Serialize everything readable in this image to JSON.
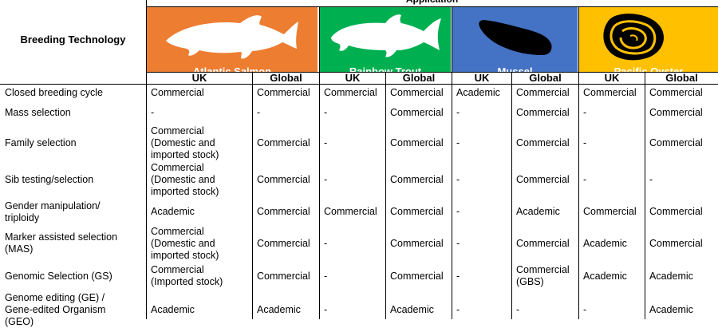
{
  "header": {
    "application_label": "Application",
    "breeding_technology_label": "Breeding Technology",
    "sub_uk": "UK",
    "sub_global": "Global"
  },
  "colors": {
    "salmon": "#ED7D31",
    "trout": "#00B050",
    "mussel": "#4472C4",
    "oyster": "#FFC000"
  },
  "species": [
    {
      "name": "Atlantic Salmon",
      "icon": "salmon-silhouette-icon"
    },
    {
      "name": "Rainbow Trout",
      "icon": "trout-silhouette-icon"
    },
    {
      "name": "Mussel",
      "icon": "mussel-silhouette-icon"
    },
    {
      "name": "Pacific Oyster",
      "icon": "oyster-silhouette-icon"
    }
  ],
  "rows": [
    {
      "technology": "Closed breeding cycle",
      "cells": [
        "Commercial",
        "Commercial",
        "Commercial",
        "Commercial",
        "Academic",
        "Commercial",
        "Commercial",
        "Commercial"
      ]
    },
    {
      "technology": "Mass selection",
      "cells": [
        "-",
        "-",
        "-",
        "Commercial",
        "-",
        "Commercial",
        "-",
        "Commercial"
      ]
    },
    {
      "technology": "Family selection",
      "cells": [
        "Commercial\n(Domestic and\nimported stock)",
        "Commercial",
        "-",
        "Commercial",
        "-",
        "Commercial",
        "-",
        "Commercial"
      ]
    },
    {
      "technology": "Sib testing/selection",
      "cells": [
        "Commercial\n(Domestic and\nimported stock)",
        "Commercial",
        "-",
        "Commercial",
        "-",
        "Commercial",
        "-",
        "-"
      ]
    },
    {
      "technology": "Gender manipulation/\ntriploidy",
      "cells": [
        "Academic",
        "Commercial",
        "Commercial",
        "Commercial",
        "-",
        "Academic",
        "Commercial",
        "Commercial"
      ]
    },
    {
      "technology": "Marker assisted selection\n(MAS)",
      "cells": [
        "Commercial\n(Domestic and\nimported stock)",
        "Commercial",
        "-",
        "Commercial",
        "-",
        "Commercial",
        "Academic",
        "Commercial"
      ]
    },
    {
      "technology": "Genomic Selection (GS)",
      "cells": [
        "Commercial\n(Imported stock)",
        "Commercial",
        "-",
        "Commercial",
        "-",
        "Commercial\n(GBS)",
        "Academic",
        "Academic"
      ]
    },
    {
      "technology": "Genome editing (GE) /\nGene-edited Organism\n(GEO)",
      "cells": [
        "Academic",
        "Academic",
        "-",
        "Academic",
        "-",
        "-",
        "-",
        "Academic"
      ]
    }
  ]
}
